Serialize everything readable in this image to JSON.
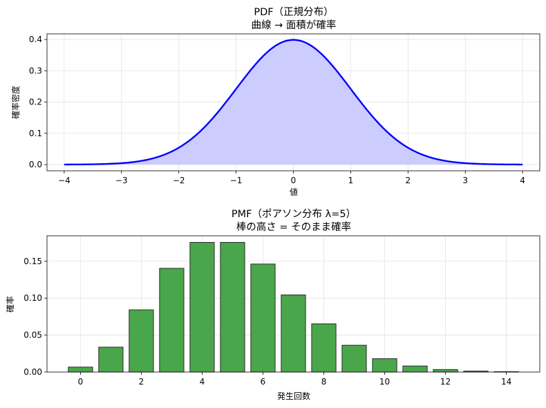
{
  "chart_data": [
    {
      "type": "area",
      "title": "PDF（正規分布）",
      "subtitle": "曲線 → 面積が確率",
      "xlabel": "値",
      "ylabel": "確率密度",
      "xlim": [
        -4.3,
        4.3
      ],
      "ylim": [
        -0.02,
        0.418
      ],
      "xticks": [
        -4,
        -3,
        -2,
        -1,
        0,
        1,
        2,
        3,
        4
      ],
      "xtick_labels": [
        "−4",
        "−3",
        "−2",
        "−1",
        "0",
        "1",
        "2",
        "3",
        "4"
      ],
      "yticks": [
        0.0,
        0.1,
        0.2,
        0.3,
        0.4
      ],
      "ytick_labels": [
        "0.0",
        "0.1",
        "0.2",
        "0.3",
        "0.4"
      ],
      "grid": true,
      "line_color": "#0000ff",
      "fill_color": "#ccccff",
      "x": [
        -4.0,
        -3.5,
        -3.0,
        -2.5,
        -2.0,
        -1.75,
        -1.5,
        -1.25,
        -1.0,
        -0.75,
        -0.5,
        -0.25,
        0.0,
        0.25,
        0.5,
        0.75,
        1.0,
        1.25,
        1.5,
        1.75,
        2.0,
        2.5,
        3.0,
        3.5,
        4.0
      ],
      "y": [
        0.0001,
        0.0009,
        0.0044,
        0.0175,
        0.054,
        0.0863,
        0.1295,
        0.1826,
        0.242,
        0.3011,
        0.3521,
        0.3867,
        0.3989,
        0.3867,
        0.3521,
        0.3011,
        0.242,
        0.1826,
        0.1295,
        0.0863,
        0.054,
        0.0175,
        0.0044,
        0.0009,
        0.0001
      ]
    },
    {
      "type": "bar",
      "title": "PMF（ポアソン分布 λ=5）",
      "subtitle": "棒の高さ = そのまま確率",
      "xlabel": "発生回数",
      "ylabel": "確率",
      "xlim": [
        -1.1,
        15.1
      ],
      "ylim": [
        0,
        0.1844
      ],
      "xticks": [
        0,
        2,
        4,
        6,
        8,
        10,
        12,
        14
      ],
      "xtick_labels": [
        "0",
        "2",
        "4",
        "6",
        "8",
        "10",
        "12",
        "14"
      ],
      "yticks": [
        0.0,
        0.05,
        0.1,
        0.15
      ],
      "ytick_labels": [
        "0.00",
        "0.05",
        "0.10",
        "0.15"
      ],
      "grid": true,
      "bar_color": "#4aa64a",
      "edge_color": "#2b2b2b",
      "categories": [
        0,
        1,
        2,
        3,
        4,
        5,
        6,
        7,
        8,
        9,
        10,
        11,
        12,
        13,
        14
      ],
      "values": [
        0.0067,
        0.0337,
        0.0842,
        0.1404,
        0.1755,
        0.1755,
        0.1462,
        0.1044,
        0.0653,
        0.0363,
        0.0181,
        0.0082,
        0.0034,
        0.0013,
        0.0005
      ]
    }
  ]
}
